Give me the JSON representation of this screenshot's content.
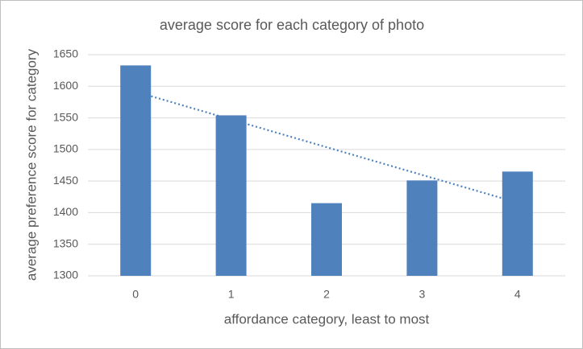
{
  "chart_data": {
    "type": "bar",
    "title": "average score for each category of photo",
    "x_label": "affordance category, least to most",
    "y_label": "average preference score for category",
    "categories": [
      "0",
      "1",
      "2",
      "3",
      "4"
    ],
    "values": [
      1633,
      1554,
      1415,
      1451,
      1465
    ],
    "color": "#4f81bd",
    "ylim": [
      1300,
      1650
    ],
    "yticks": [
      1300,
      1350,
      1400,
      1450,
      1500,
      1550,
      1600,
      1650
    ],
    "grid": true,
    "trendline": {
      "color": "#4f81bd",
      "dash": "dotted",
      "values": [
        1591.4,
        1547.5,
        1503.6,
        1459.7,
        1415.8
      ]
    }
  }
}
